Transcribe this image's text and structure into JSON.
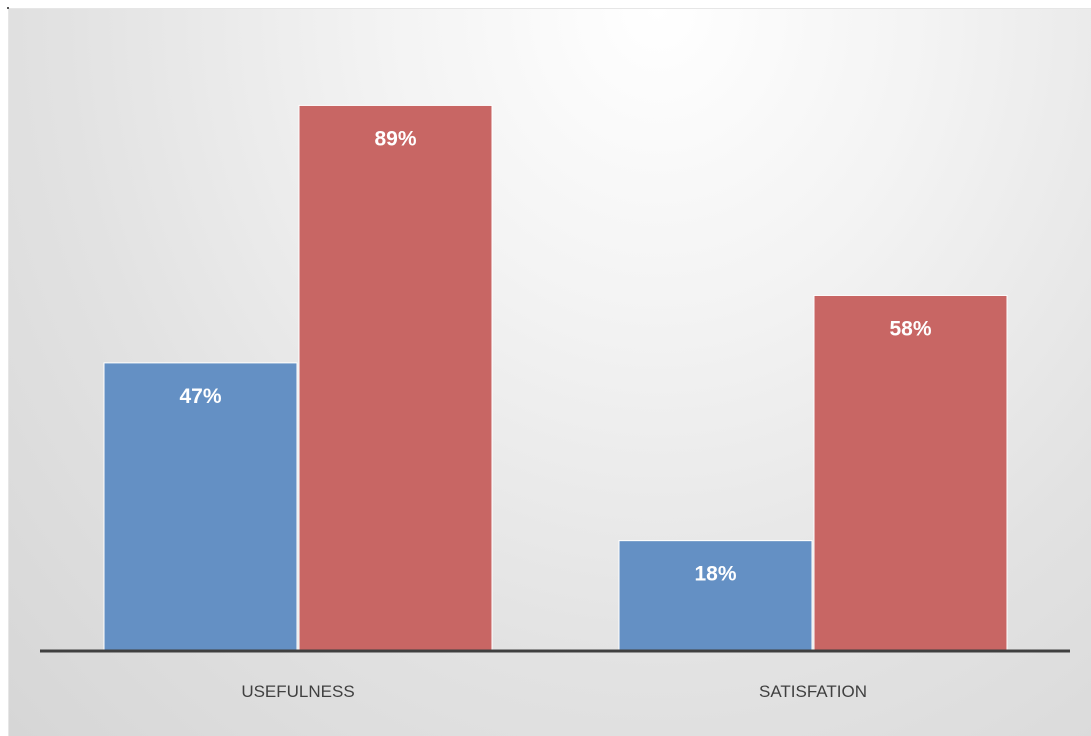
{
  "chart_data": {
    "type": "bar",
    "categories": [
      "USEFULNESS",
      "SATISFATION"
    ],
    "series": [
      {
        "values": [
          47,
          18
        ],
        "labels": [
          "47%",
          "18%"
        ],
        "color": "#6490c4"
      },
      {
        "values": [
          89,
          58
        ],
        "labels": [
          "89%",
          "58%"
        ],
        "color": "#c86664"
      }
    ],
    "title": "",
    "xlabel": "",
    "ylabel": "",
    "ylim": [
      0,
      100
    ],
    "grid": false,
    "legend": "none",
    "axis_color": "#404040",
    "background": "#e2e2e2"
  }
}
